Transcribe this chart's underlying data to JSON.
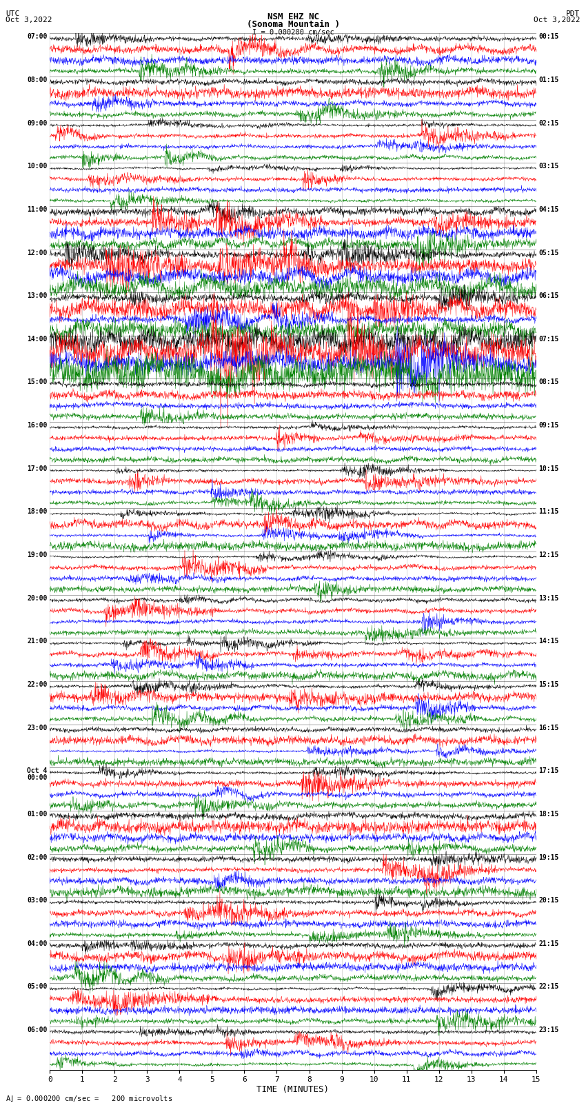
{
  "title_line1": "NSM EHZ NC",
  "title_line2": "(Sonoma Mountain )",
  "scale_label": "I = 0.000200 cm/sec",
  "left_label_top": "UTC",
  "left_label_date": "Oct 3,2022",
  "right_label_top": "PDT",
  "right_label_date": "Oct 3,2022",
  "bottom_note": "= 0.000200 cm/sec =   200 microvolts",
  "xlabel": "TIME (MINUTES)",
  "xticks": [
    0,
    1,
    2,
    3,
    4,
    5,
    6,
    7,
    8,
    9,
    10,
    11,
    12,
    13,
    14,
    15
  ],
  "left_times": [
    "07:00",
    "08:00",
    "09:00",
    "10:00",
    "11:00",
    "12:00",
    "13:00",
    "14:00",
    "15:00",
    "16:00",
    "17:00",
    "18:00",
    "19:00",
    "20:00",
    "21:00",
    "22:00",
    "23:00",
    "Oct 4\n00:00",
    "01:00",
    "02:00",
    "03:00",
    "04:00",
    "05:00",
    "06:00"
  ],
  "right_times": [
    "00:15",
    "01:15",
    "02:15",
    "03:15",
    "04:15",
    "05:15",
    "06:15",
    "07:15",
    "08:15",
    "09:15",
    "10:15",
    "11:15",
    "12:15",
    "13:15",
    "14:15",
    "15:15",
    "16:15",
    "17:15",
    "18:15",
    "19:15",
    "20:15",
    "21:15",
    "22:15",
    "23:15"
  ],
  "n_rows": 24,
  "traces_per_row": 4,
  "colors": [
    "black",
    "red",
    "blue",
    "green"
  ],
  "bg_color": "white",
  "fig_width": 8.5,
  "fig_height": 16.13,
  "dpi": 100,
  "row_amplitudes": [
    3.5,
    3.0,
    2.5,
    2.0,
    5.0,
    7.0,
    6.0,
    12.0,
    2.5,
    2.0,
    2.5,
    3.0,
    2.5,
    2.5,
    3.0,
    3.5,
    2.5,
    3.0,
    3.5,
    3.5,
    3.0,
    3.5,
    3.0,
    2.5
  ],
  "color_amp_scale": [
    1.0,
    1.8,
    1.2,
    1.5
  ]
}
